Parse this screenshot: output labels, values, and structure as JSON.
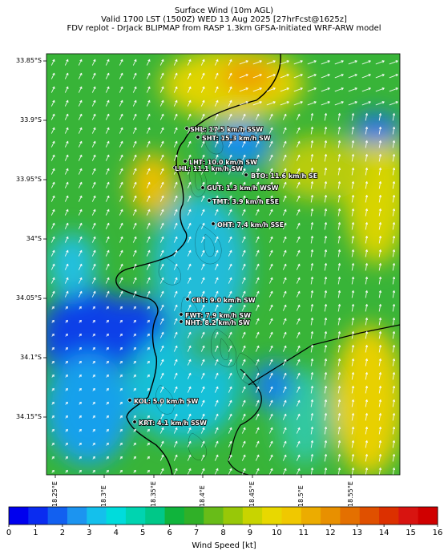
{
  "titles": {
    "line1": "Surface Wind (10m AGL)",
    "line2": "Valid 1700 LST (1500Z) WED 13 Aug 2025 [27hrFcst@1625z]",
    "line3": "FDV replot - DrJack BLIPMAP from RASP 1.3km GFSA-Initiated WRF-ARW model"
  },
  "lat_labels": [
    "33.85°S",
    "33.9°S",
    "33.95°S",
    "34°S",
    "34.05°S",
    "34.1°S",
    "34.15°S"
  ],
  "lon_labels": [
    "18.25°E",
    "18.3°E",
    "18.35°E",
    "18.4°E",
    "18.45°E",
    "18.5°E",
    "18.55°E"
  ],
  "stations": [
    {
      "code": "SHL",
      "label": "SHL: 17.5 km/h SSW"
    },
    {
      "code": "SHT",
      "label": "SHT: 15.3 km/h SW"
    },
    {
      "code": "LHT",
      "label": "LHT: 10.0 km/h SW"
    },
    {
      "code": "LHL",
      "label": "LHL: 11.1 km/h SW"
    },
    {
      "code": "BTO",
      "label": "BTO: 11.6 km/h SE"
    },
    {
      "code": "GUT",
      "label": "GUT: 1.3 km/h WSW"
    },
    {
      "code": "TMT",
      "label": "TMT: 3.9 km/h ESE"
    },
    {
      "code": "OHT",
      "label": "OHT: 7.4 km/h SSE"
    },
    {
      "code": "CBT",
      "label": "CBT: 9.0 km/h SW"
    },
    {
      "code": "FWT",
      "label": "FWT: 7.9 km/h SW"
    },
    {
      "code": "NHT",
      "label": "NHT: 8.2 km/h SW"
    },
    {
      "code": "KOL",
      "label": "KOL: 5.0 km/h SW"
    },
    {
      "code": "KRT",
      "label": "KRT: 4.1 km/h SSW"
    }
  ],
  "colorbar": {
    "title": "Wind Speed [kt]",
    "ticks": [
      "0",
      "1",
      "2",
      "3",
      "4",
      "5",
      "6",
      "7",
      "8",
      "9",
      "10",
      "11",
      "12",
      "13",
      "14",
      "15",
      "16"
    ],
    "colors": [
      "#0000ee",
      "#0a2cf0",
      "#1260f0",
      "#1c94f0",
      "#14c0ec",
      "#00dcdc",
      "#00d4b0",
      "#00c888",
      "#10b43c",
      "#30b028",
      "#68bc18",
      "#98c808",
      "#c8d400",
      "#e8d800",
      "#f0c800",
      "#ecac00",
      "#e89000",
      "#e47000",
      "#e05000",
      "#dc3000",
      "#d81410",
      "#d00000"
    ]
  },
  "field_colors": {
    "low": "#0a30e8",
    "cyan": "#14d4e4",
    "green": "#28b028",
    "yellow": "#e0d800",
    "orange": "#f0a000",
    "land_line": "#000000"
  }
}
